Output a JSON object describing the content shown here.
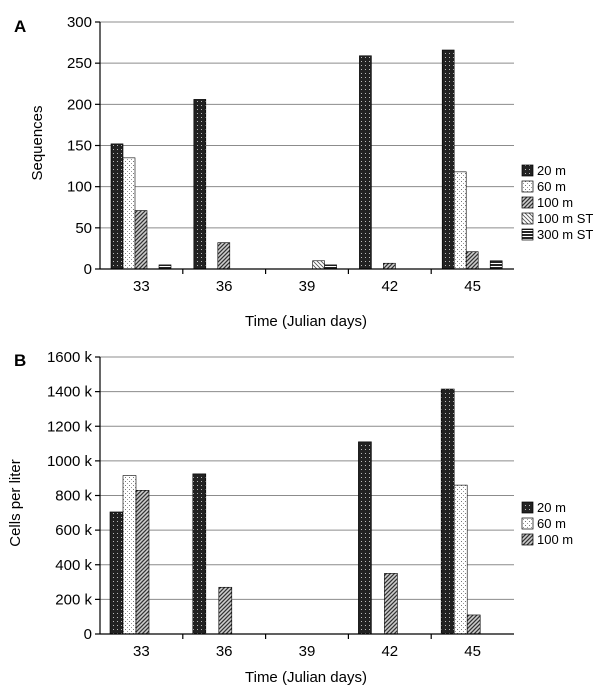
{
  "chart_data": [
    {
      "type": "bar",
      "panel": "A",
      "categories": [
        "33",
        "36",
        "39",
        "42",
        "45"
      ],
      "series": [
        {
          "name": "20 m",
          "values": [
            152,
            206,
            0,
            259,
            266
          ]
        },
        {
          "name": "60 m",
          "values": [
            135,
            0,
            0,
            0,
            118
          ]
        },
        {
          "name": "100 m",
          "values": [
            71,
            32,
            0,
            7,
            21
          ]
        },
        {
          "name": "100 m ST",
          "values": [
            0,
            0,
            10,
            0,
            0
          ]
        },
        {
          "name": "300 m ST",
          "values": [
            5,
            0,
            5,
            0,
            10
          ]
        }
      ],
      "ylim": [
        0,
        300
      ],
      "yticks": [
        "0",
        "50",
        "100",
        "150",
        "200",
        "250",
        "300"
      ],
      "xlabel": "Time (Julian days)",
      "ylabel": "Sequences",
      "grid": true,
      "legend": "right"
    },
    {
      "type": "bar",
      "panel": "B",
      "categories": [
        "33",
        "36",
        "39",
        "42",
        "45"
      ],
      "series": [
        {
          "name": "20 m",
          "values": [
            705,
            925,
            0,
            1110,
            1415
          ]
        },
        {
          "name": "60 m",
          "values": [
            915,
            0,
            0,
            0,
            860
          ]
        },
        {
          "name": "100 m",
          "values": [
            830,
            270,
            0,
            350,
            110
          ]
        }
      ],
      "ylim": [
        0,
        1600
      ],
      "yticks": [
        "0",
        "200 k",
        "400 k",
        "600 k",
        "800 k",
        "1000 k",
        "1200 k",
        "1400 k",
        "1600 k"
      ],
      "xlabel": "Time (Julian days)",
      "ylabel": "Cells per liter",
      "grid": true,
      "legend": "right"
    }
  ]
}
